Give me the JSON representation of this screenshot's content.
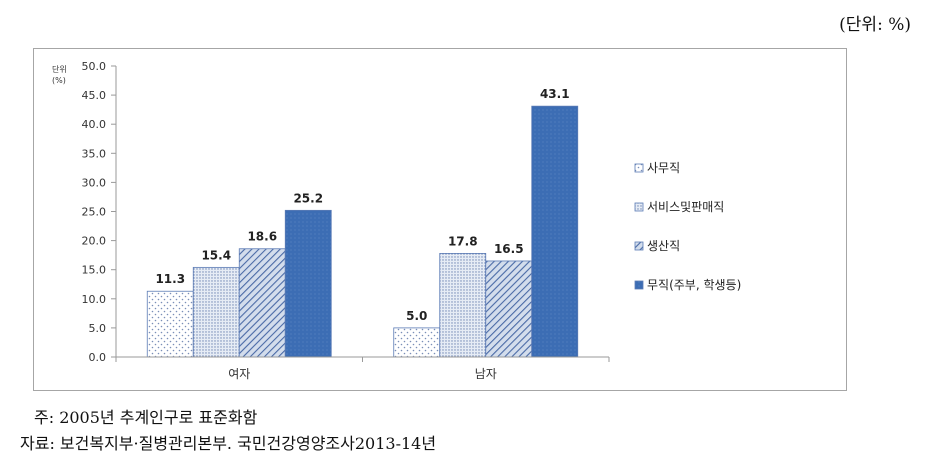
{
  "unit_note": "(단위: %)",
  "notes": {
    "line1": "주: 2005년 추계인구로 표준화함",
    "line2": "자료: 보건복지부·질병관리본부. 국민건강영양조사2013-14년"
  },
  "colors": {
    "office": "#ffffff",
    "service": "#dfe6f1",
    "production": "#c5d2e6",
    "none": "#3c6db4",
    "axis": "#9a9a9a"
  },
  "chart_data": {
    "type": "bar",
    "categories": [
      "여자",
      "남자"
    ],
    "y_unit_label": [
      "단위",
      "(%)"
    ],
    "ylim": [
      0,
      50
    ],
    "yticks": [
      "0.0",
      "5.0",
      "10.0",
      "15.0",
      "20.0",
      "25.0",
      "30.0",
      "35.0",
      "40.0",
      "45.0",
      "50.0"
    ],
    "grid": false,
    "legend_position": "right",
    "series": [
      {
        "name": "사무직",
        "values": [
          11.3,
          5.0
        ],
        "labels": [
          "11.3",
          "5.0"
        ],
        "pattern": "dots",
        "color": "#ffffff"
      },
      {
        "name": "서비스및판매직",
        "values": [
          15.4,
          17.8
        ],
        "labels": [
          "15.4",
          "17.8"
        ],
        "pattern": "fine-dots",
        "color": "#dfe6f1"
      },
      {
        "name": "생산직",
        "values": [
          18.6,
          16.5
        ],
        "labels": [
          "18.6",
          "16.5"
        ],
        "pattern": "diagonal",
        "color": "#c5d2e6"
      },
      {
        "name": "무직(주부, 학생등)",
        "values": [
          25.2,
          43.1
        ],
        "labels": [
          "25.2",
          "43.1"
        ],
        "pattern": "solid",
        "color": "#3c6db4"
      }
    ]
  }
}
